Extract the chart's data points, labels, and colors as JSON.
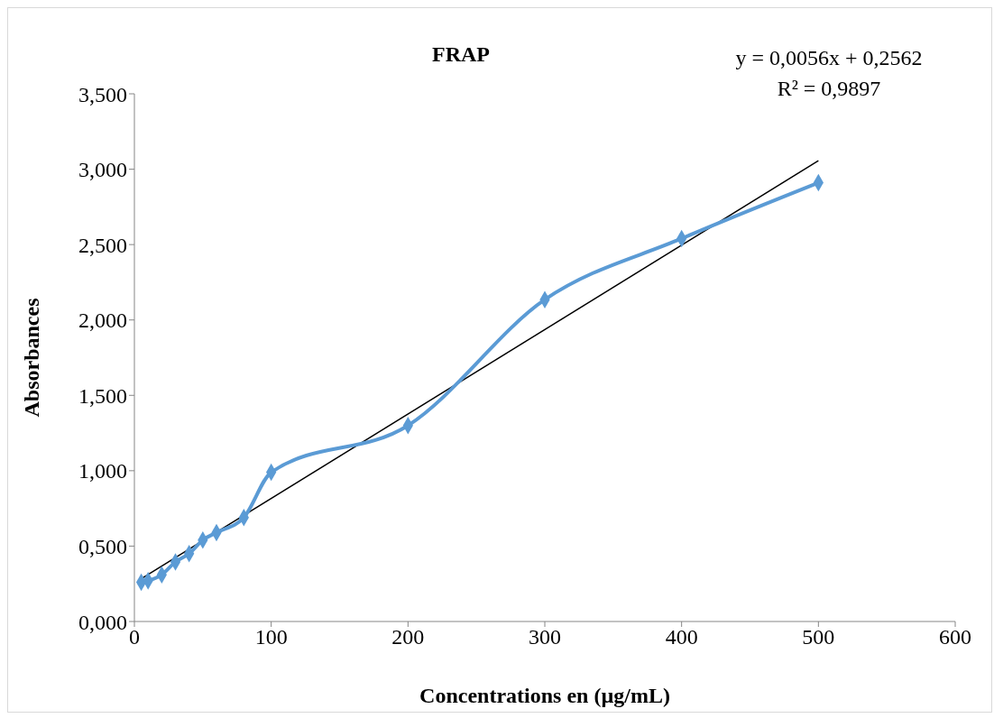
{
  "chart_data": {
    "type": "line",
    "title": "FRAP",
    "xlabel": "Concentrations en (µg/mL)",
    "ylabel": "Absorbances",
    "annotations": [
      "y = 0,0056x + 0,2562",
      "R² = 0,9897"
    ],
    "x": [
      5,
      10,
      20,
      30,
      40,
      50,
      60,
      80,
      100,
      200,
      300,
      400,
      500
    ],
    "series": [
      {
        "color": "#5b9bd5",
        "values": [
          0.26,
          0.27,
          0.31,
          0.395,
          0.45,
          0.54,
          0.59,
          0.69,
          0.99,
          1.3,
          2.135,
          2.54,
          2.91
        ],
        "marker": "diamond"
      },
      {
        "type": "line",
        "color": "#000000",
        "x": [
          5,
          500
        ],
        "values": [
          0.284,
          3.056
        ],
        "marker": "none"
      }
    ],
    "xlim": [
      0,
      600
    ],
    "xticks": [
      0,
      100,
      200,
      300,
      400,
      500,
      600
    ],
    "ylim": [
      0,
      3.5
    ],
    "yticks": [
      {
        "value": 0,
        "label": "0,000"
      },
      {
        "value": 0.5,
        "label": "0,500"
      },
      {
        "value": 1,
        "label": "1,000"
      },
      {
        "value": 1.5,
        "label": "1,500"
      },
      {
        "value": 2,
        "label": "2,000"
      },
      {
        "value": 2.5,
        "label": "2,500"
      },
      {
        "value": 3,
        "label": "3,000"
      },
      {
        "value": 3.5,
        "label": "3,500"
      }
    ],
    "grid": false
  }
}
